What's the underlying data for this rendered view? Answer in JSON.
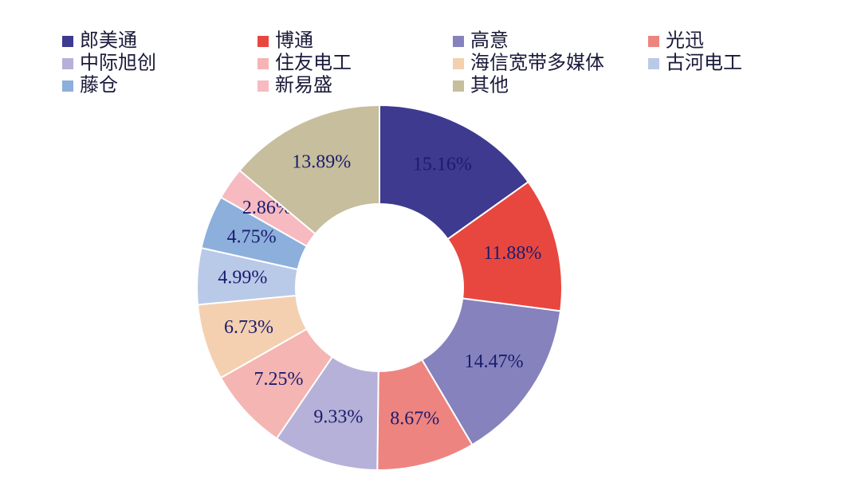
{
  "chart_data": {
    "type": "donut",
    "categories": [
      "郎美通",
      "博通",
      "高意",
      "光迅",
      "中际旭创",
      "住友电工",
      "海信宽带多媒体",
      "古河电工",
      "藤仓",
      "新易盛",
      "其他"
    ],
    "values": [
      15.16,
      11.88,
      14.47,
      8.67,
      9.33,
      7.25,
      6.73,
      4.99,
      4.75,
      2.86,
      13.89
    ],
    "value_labels": [
      "15.16%",
      "11.88%",
      "14.47%",
      "8.67%",
      "9.33%",
      "7.25%",
      "6.73%",
      "4.99%",
      "4.75%",
      "2.86%",
      "13.89%"
    ],
    "colors": [
      "#3d3a90",
      "#e8473f",
      "#8682bd",
      "#ee8480",
      "#b5b1d8",
      "#f4b5b3",
      "#f4d0b0",
      "#b9c9e8",
      "#8cafdc",
      "#f6bac0",
      "#c6be9c"
    ]
  }
}
